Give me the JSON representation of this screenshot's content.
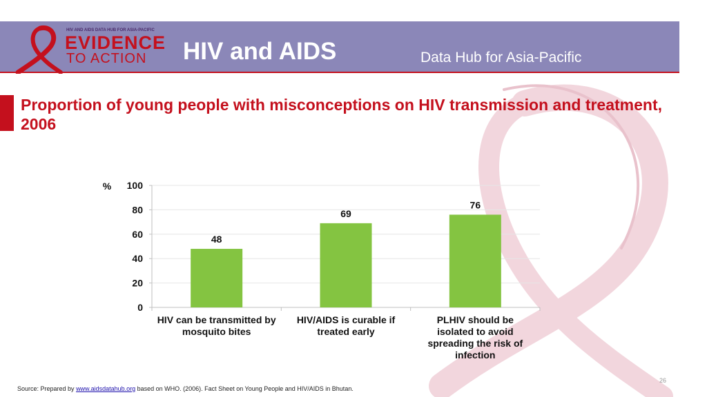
{
  "header": {
    "logo_small": "HIV AND AIDS DATA HUB FOR ASIA-PACIFIC",
    "logo_big": "EVIDENCE",
    "logo_sub": "TO ACTION",
    "title": "HIV and AIDS",
    "subtitle": "Data Hub for Asia-Pacific"
  },
  "page": {
    "title": "Proportion of young people with misconceptions on HIV transmission and treatment, 2006",
    "number": "26"
  },
  "source": {
    "prefix": "Source: Prepared by ",
    "link": "www.aidsdatahub.org",
    "suffix": "  based on WHO. (2006). Fact Sheet on Young People and HIV/AIDS in Bhutan."
  },
  "colors": {
    "accent": "#c4101d",
    "header_bg": "#8b87b8",
    "bar": "#84c441"
  },
  "chart_data": {
    "type": "bar",
    "ylabel": "%",
    "categories": [
      [
        "HIV can be transmitted by",
        "mosquito bites"
      ],
      [
        "HIV/AIDS is curable if",
        "treated early"
      ],
      [
        "PLHIV should be",
        "isolated to avoid",
        "spreading the risk of",
        "infection"
      ]
    ],
    "values": [
      48,
      69,
      76
    ],
    "ylim": [
      0,
      100
    ],
    "yticks": [
      0,
      20,
      40,
      60,
      80,
      100
    ],
    "grid": true,
    "data_labels": true
  }
}
